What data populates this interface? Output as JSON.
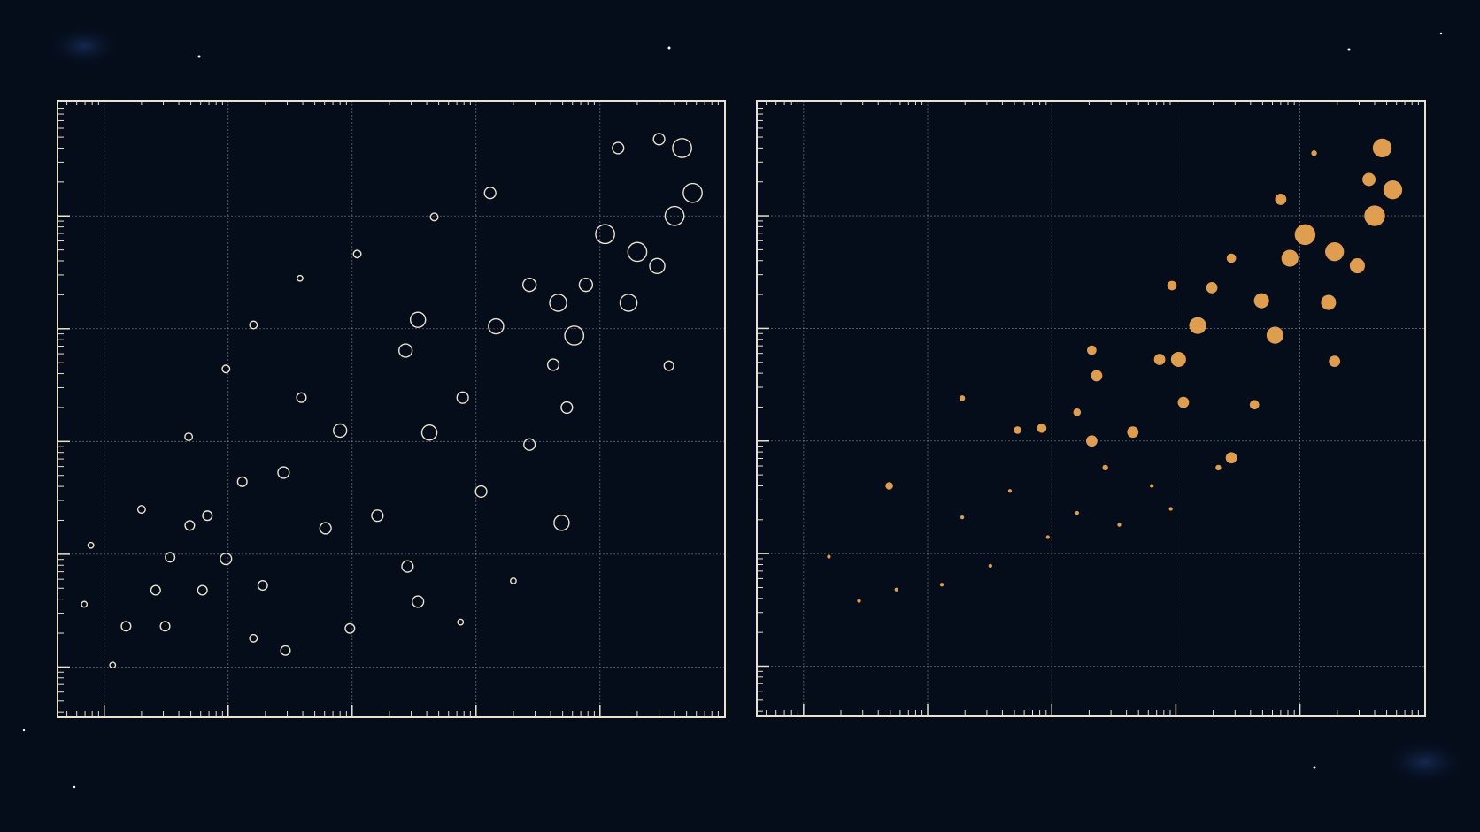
{
  "chart_data": [
    {
      "type": "scatter",
      "x_log": true,
      "y_log": true,
      "grid": true,
      "marker": "hollow",
      "xlim": [
        0.42,
        102000
      ],
      "ylim": [
        0.36,
        105000
      ],
      "xticks": [
        1,
        10,
        100,
        1000,
        10000
      ],
      "yticks": [
        1,
        10,
        100,
        1000,
        10000
      ],
      "series": [
        {
          "color": "#ece4cf",
          "x": [
            0.78,
            1.17,
            1.5,
            3.1,
            4.9,
            9.6,
            16,
            29,
            38,
            96,
            340,
            750,
            4900,
            2000,
            110,
            460,
            1300,
            14000,
            30000,
            46000,
            56000,
            40000,
            20000,
            29000,
            36000,
            17000,
            11000,
            6200,
            4200,
            1450,
            340,
            270,
            420,
            160,
            80,
            28,
            13,
            6.8,
            3.4,
            2,
            2.6,
            4.8,
            9.6,
            16,
            39,
            780,
            2700,
            1100,
            5400,
            7700,
            2700,
            4600,
            61,
            19,
            6.2,
            0.69,
            280
          ],
          "y": [
            12,
            1.04,
            2.3,
            2.3,
            18,
            9.1,
            1.8,
            1.4,
            2800,
            2.2,
            3.8,
            2.5,
            19,
            5.8,
            4600,
            9800,
            16000,
            40000,
            48000,
            40000,
            16000,
            10000,
            4800,
            3600,
            470,
            1700,
            6900,
            870,
            480,
            1050,
            1200,
            640,
            120,
            22,
            125,
            53,
            44,
            22,
            9.4,
            25,
            4.8,
            110,
            440,
            1080,
            245,
            245,
            94,
            36,
            200,
            2450,
            2450,
            1700,
            17,
            5.3,
            4.8,
            3.6,
            7.8
          ],
          "sizes": [
            3,
            3,
            5,
            5,
            5,
            6,
            4,
            5,
            3,
            5,
            6,
            3,
            8,
            3,
            4,
            4,
            6,
            6,
            6,
            10,
            10,
            10,
            10,
            8,
            5,
            9,
            10,
            10,
            6,
            8,
            8,
            7,
            8,
            6,
            7,
            6,
            5,
            5,
            5,
            4,
            5,
            4,
            4,
            4,
            5,
            6,
            6,
            6,
            6,
            7,
            7,
            9,
            6,
            5,
            5,
            3,
            6
          ]
        }
      ]
    },
    {
      "type": "scatter",
      "x_log": true,
      "y_log": true,
      "grid": true,
      "marker": "filled",
      "xlim": [
        0.42,
        102000
      ],
      "ylim": [
        0.36,
        105000
      ],
      "xticks": [
        1,
        10,
        100,
        1000,
        10000
      ],
      "yticks": [
        1,
        10,
        100,
        1000,
        10000
      ],
      "series": [
        {
          "color": "#f2aa55",
          "x": [
            46000,
            56000,
            40000,
            36000,
            19000,
            29000,
            11000,
            8300,
            17000,
            6300,
            19000,
            7000,
            4900,
            1500,
            1050,
            2800,
            4300,
            1150,
            450,
            210,
            230,
            210,
            160,
            83,
            53,
            1950,
            2800,
            930,
            740,
            19,
            4.9,
            19,
            46,
            160,
            350,
            93,
            13,
            5.6,
            2.8,
            1.6,
            32,
            270,
            640,
            910,
            2200,
            13000
          ],
          "y": [
            40000,
            17000,
            10000,
            21000,
            4800,
            3600,
            6800,
            4200,
            1700,
            870,
            510,
            14000,
            1760,
            1060,
            530,
            71,
            210,
            220,
            120,
            100,
            380,
            640,
            180,
            130,
            125,
            2300,
            4200,
            2400,
            530,
            240,
            40,
            21,
            36,
            23,
            18,
            14,
            5.3,
            4.8,
            3.8,
            9.4,
            7.8,
            58,
            40,
            25,
            58,
            36000
          ],
          "sizes": [
            10,
            10,
            11,
            7,
            10,
            8,
            11,
            9,
            8,
            9,
            6,
            6,
            8,
            9,
            8,
            6,
            5,
            6,
            6,
            6,
            6,
            5,
            4,
            5,
            4,
            6,
            5,
            5,
            6,
            3,
            4,
            2,
            2,
            2,
            2,
            2,
            2,
            2,
            2,
            2,
            2,
            3,
            2,
            2,
            3,
            3
          ]
        }
      ]
    }
  ]
}
